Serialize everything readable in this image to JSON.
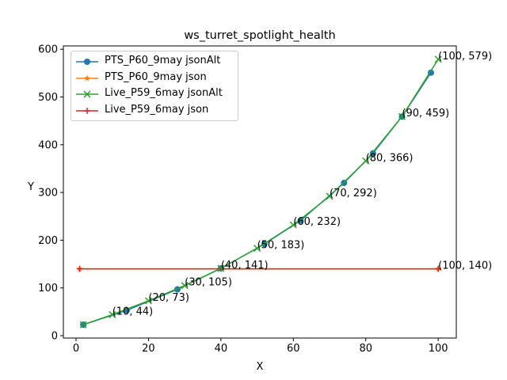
{
  "chart_data": {
    "type": "line",
    "title": "ws_turret_spotlight_health",
    "xlabel": "X",
    "ylabel": "Y",
    "xlim": [
      -3.5,
      105
    ],
    "ylim": [
      -5,
      607
    ],
    "x_ticks": [
      0,
      20,
      40,
      60,
      80,
      100
    ],
    "y_ticks": [
      0,
      100,
      200,
      300,
      400,
      500,
      600
    ],
    "grid": false,
    "legend_position": "upper-left",
    "series": [
      {
        "name": "PTS_P60_9may jsonAlt",
        "color": "#1f77b4",
        "marker": "circle",
        "x": [
          2,
          14,
          28,
          40,
          52,
          62,
          74,
          82,
          90,
          98
        ],
        "y": [
          23,
          53,
          97,
          141,
          192,
          241,
          320,
          382,
          459,
          551
        ]
      },
      {
        "name": "PTS_P60_9may json",
        "color": "#ff7f0e",
        "marker": "star",
        "x": [
          1,
          100
        ],
        "y": [
          140,
          140
        ]
      },
      {
        "name": "Live_P59_6may jsonAlt",
        "color": "#2ca02c",
        "marker": "x",
        "x": [
          2,
          10,
          20,
          30,
          40,
          50,
          60,
          70,
          80,
          90,
          100
        ],
        "y": [
          23,
          44,
          73,
          105,
          141,
          183,
          232,
          292,
          366,
          459,
          579
        ]
      },
      {
        "name": "Live_P59_6may json",
        "color": "#d62728",
        "marker": "plus",
        "x": [
          1,
          100
        ],
        "y": [
          140,
          140
        ]
      }
    ],
    "annotations": [
      {
        "text": "(10, 44)",
        "x": 10,
        "y": 44
      },
      {
        "text": "(20, 73)",
        "x": 20,
        "y": 73
      },
      {
        "text": "(30, 105)",
        "x": 30,
        "y": 105
      },
      {
        "text": "(40, 141)",
        "x": 40,
        "y": 141
      },
      {
        "text": "(50, 183)",
        "x": 50,
        "y": 183
      },
      {
        "text": "(60, 232)",
        "x": 60,
        "y": 232
      },
      {
        "text": "(70, 292)",
        "x": 70,
        "y": 292
      },
      {
        "text": "(80, 366)",
        "x": 80,
        "y": 366
      },
      {
        "text": "(90, 459)",
        "x": 90,
        "y": 459
      },
      {
        "text": "(100, 579)",
        "x": 100,
        "y": 579
      },
      {
        "text": "(100, 140)",
        "x": 100,
        "y": 140
      }
    ]
  }
}
